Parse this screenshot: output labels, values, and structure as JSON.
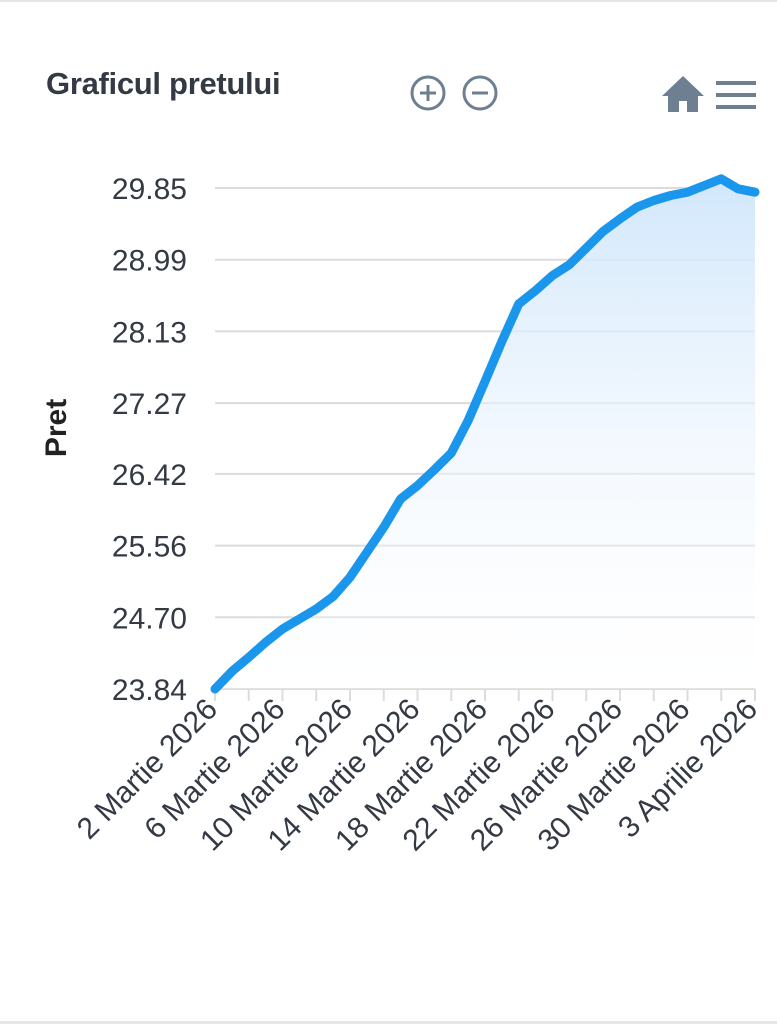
{
  "toolbar": {
    "title": "Graficul pretului",
    "zoom_in_icon": "zoom-in-icon",
    "zoom_out_icon": "zoom-out-icon",
    "home_icon": "home-icon",
    "menu_icon": "menu-icon"
  },
  "colors": {
    "line": "#1a96ec",
    "area_top": "#cfe6fb",
    "grid": "#dcdcdc",
    "icon": "#6e7f92"
  },
  "chart_data": {
    "type": "area",
    "ylabel": "Pret",
    "ylim": [
      23.84,
      29.85
    ],
    "yticks": [
      "29.85",
      "28.99",
      "28.13",
      "27.27",
      "26.42",
      "25.56",
      "24.70",
      "23.84"
    ],
    "xticks": [
      "2 Martie 2026",
      "6 Martie 2026",
      "10 Martie 2026",
      "14 Martie 2026",
      "18 Martie 2026",
      "22 Martie 2026",
      "26 Martie 2026",
      "30 Martie 2026",
      "3 Aprilie 2026"
    ],
    "x": [
      "2026-03-02",
      "2026-03-03",
      "2026-03-04",
      "2026-03-05",
      "2026-03-06",
      "2026-03-07",
      "2026-03-08",
      "2026-03-09",
      "2026-03-10",
      "2026-03-11",
      "2026-03-12",
      "2026-03-13",
      "2026-03-14",
      "2026-03-15",
      "2026-03-16",
      "2026-03-17",
      "2026-03-18",
      "2026-03-19",
      "2026-03-20",
      "2026-03-21",
      "2026-03-22",
      "2026-03-23",
      "2026-03-24",
      "2026-03-25",
      "2026-03-26",
      "2026-03-27",
      "2026-03-28",
      "2026-03-29",
      "2026-03-30",
      "2026-03-31",
      "2026-04-01",
      "2026-04-02",
      "2026-04-03"
    ],
    "series": [
      {
        "values": [
          23.84,
          24.05,
          24.22,
          24.4,
          24.56,
          24.68,
          24.8,
          24.95,
          25.18,
          25.48,
          25.78,
          26.12,
          26.28,
          26.47,
          26.67,
          27.06,
          27.53,
          28.01,
          28.46,
          28.62,
          28.8,
          28.93,
          29.13,
          29.33,
          29.48,
          29.62,
          29.7,
          29.76,
          29.8,
          29.88,
          29.96,
          29.84,
          29.8
        ]
      }
    ]
  }
}
